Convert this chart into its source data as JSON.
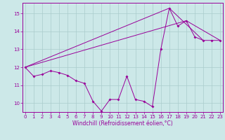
{
  "xlabel": "Windchill (Refroidissement éolien,°C)",
  "background_color": "#cce8e8",
  "grid_color": "#aacccc",
  "line_color": "#990099",
  "x_values": [
    0,
    1,
    2,
    3,
    4,
    5,
    6,
    7,
    8,
    9,
    10,
    11,
    12,
    13,
    14,
    15,
    16,
    17,
    18,
    19,
    20,
    21,
    22,
    23
  ],
  "series_jagged": [
    12.0,
    11.5,
    11.6,
    11.8,
    11.7,
    11.55,
    11.25,
    11.1,
    10.1,
    9.55,
    10.2,
    10.2,
    11.5,
    10.2,
    10.1,
    9.8,
    13.0,
    15.3,
    14.3,
    14.6,
    13.7,
    13.5,
    13.5,
    13.5
  ],
  "line1_x": [
    0,
    17,
    21
  ],
  "line1_y": [
    12.0,
    15.3,
    13.5
  ],
  "line2_x": [
    0,
    19,
    23
  ],
  "line2_y": [
    12.0,
    14.6,
    13.5
  ],
  "ylim": [
    9.5,
    15.6
  ],
  "yticks": [
    10,
    11,
    12,
    13,
    14,
    15
  ],
  "xlim": [
    -0.3,
    23.3
  ]
}
